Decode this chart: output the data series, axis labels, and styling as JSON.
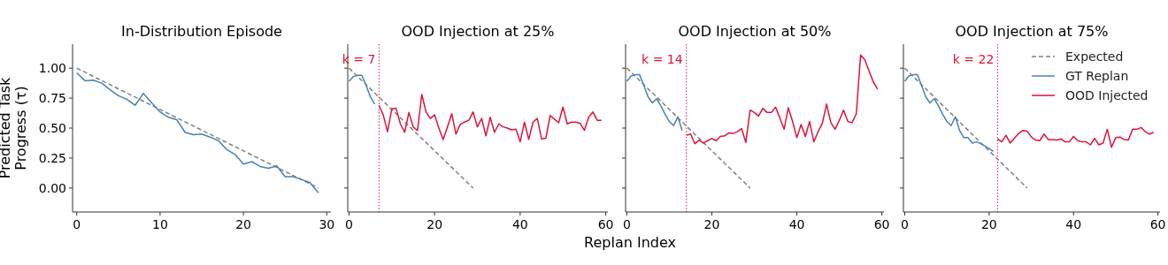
{
  "chart_data": [
    {
      "type": "line",
      "title": "In-Distribution Episode",
      "ylabel": "Predicted Task\nProgress (τ)",
      "xlim": [
        -0.5,
        30.5
      ],
      "xticks": [
        0,
        10,
        20,
        30
      ],
      "ylim": [
        -0.2,
        1.2
      ],
      "yticks": [
        {
          "value": 0,
          "label": "0.00"
        },
        {
          "value": 0.25,
          "label": "0.25"
        },
        {
          "value": 0.5,
          "label": "0.50"
        },
        {
          "value": 0.75,
          "label": "0.75"
        },
        {
          "value": 1,
          "label": "1.00"
        }
      ],
      "grid": false,
      "legend": false,
      "series": [
        {
          "color": "#808080",
          "line_style": "dashed",
          "x": [
            0,
            29
          ],
          "values": [
            1,
            0
          ]
        },
        {
          "color": "#4682b4",
          "line_style": "solid",
          "x": [
            0,
            1,
            2,
            3,
            4,
            5,
            6,
            7,
            8,
            9,
            10,
            11,
            12,
            13,
            14,
            15,
            16,
            17,
            18,
            19,
            20,
            21,
            22,
            23,
            24,
            25,
            26,
            27,
            28,
            29
          ],
          "values": [
            0.96,
            0.895,
            0.9,
            0.875,
            0.82,
            0.77,
            0.74,
            0.69,
            0.79,
            0.71,
            0.635,
            0.59,
            0.57,
            0.465,
            0.445,
            0.45,
            0.425,
            0.395,
            0.32,
            0.28,
            0.2,
            0.22,
            0.18,
            0.165,
            0.185,
            0.095,
            0.095,
            0.07,
            0.045,
            -0.04
          ]
        }
      ]
    },
    {
      "type": "line",
      "title": "OOD Injection at 25%",
      "xlim": [
        -0.3,
        60.5
      ],
      "xticks": [
        0,
        20,
        40,
        60
      ],
      "ylim": [
        -0.2,
        1.2
      ],
      "yticks": [
        {
          "value": 0,
          "label": null
        },
        {
          "value": 0.25,
          "label": null
        },
        {
          "value": 0.5,
          "label": null
        },
        {
          "value": 0.75,
          "label": null
        },
        {
          "value": 1,
          "label": null
        }
      ],
      "tick_labels": "x",
      "grid": false,
      "legend": false,
      "ref_lines": [
        {
          "axis": "x",
          "value": 7,
          "label": "k = 7",
          "color": "#dc143c",
          "line_style": "dotted"
        }
      ],
      "series": [
        {
          "color": "#808080",
          "line_style": "dashed",
          "x": [
            0,
            29
          ],
          "values": [
            1,
            0
          ]
        },
        {
          "color": "#4682b4",
          "line_style": "solid",
          "x": [
            0,
            1,
            2,
            3,
            4,
            5,
            6
          ],
          "values": [
            0.89,
            0.93,
            0.94,
            0.94,
            0.855,
            0.76,
            0.7
          ]
        },
        {
          "color": "#dc143c",
          "line_style": "solid",
          "x": [
            7,
            8,
            9,
            10,
            11,
            12,
            13,
            14,
            15,
            16,
            17,
            18,
            19,
            20,
            21,
            22,
            23,
            24,
            25,
            26,
            27,
            28,
            29,
            30,
            31,
            32,
            33,
            34,
            35,
            36,
            37,
            38,
            39,
            40,
            41,
            42,
            43,
            44,
            45,
            46,
            47,
            48,
            49,
            50,
            51,
            52,
            53,
            54,
            55,
            56,
            57,
            58,
            59
          ],
          "values": [
            0.69,
            0.61,
            0.47,
            0.66,
            0.665,
            0.535,
            0.465,
            0.63,
            0.51,
            0.48,
            0.78,
            0.635,
            0.58,
            0.61,
            0.5,
            0.405,
            0.51,
            0.62,
            0.45,
            0.53,
            0.55,
            0.565,
            0.635,
            0.51,
            0.58,
            0.435,
            0.59,
            0.465,
            0.535,
            0.51,
            0.5,
            0.485,
            0.49,
            0.385,
            0.55,
            0.405,
            0.55,
            0.58,
            0.41,
            0.415,
            0.605,
            0.575,
            0.545,
            0.675,
            0.535,
            0.55,
            0.55,
            0.54,
            0.48,
            0.59,
            0.635,
            0.565,
            0.565
          ]
        }
      ]
    },
    {
      "type": "line",
      "title": "OOD Injection at 50%",
      "xlabel": "Replan Index",
      "xlim": [
        -0.3,
        60.5
      ],
      "xticks": [
        0,
        20,
        40,
        60
      ],
      "ylim": [
        -0.2,
        1.2
      ],
      "yticks": [
        {
          "value": 0,
          "label": null
        },
        {
          "value": 0.25,
          "label": null
        },
        {
          "value": 0.5,
          "label": null
        },
        {
          "value": 0.75,
          "label": null
        },
        {
          "value": 1,
          "label": null
        }
      ],
      "tick_labels": "x",
      "grid": false,
      "legend": false,
      "ref_lines": [
        {
          "axis": "x",
          "value": 14,
          "label": "k = 14",
          "color": "#dc143c",
          "line_style": "dotted"
        }
      ],
      "series": [
        {
          "color": "#808080",
          "line_style": "dashed",
          "x": [
            0,
            29
          ],
          "values": [
            1,
            0
          ]
        },
        {
          "color": "#4682b4",
          "line_style": "solid",
          "x": [
            0,
            1,
            2,
            3,
            4,
            5,
            6,
            7,
            8,
            9,
            10,
            11,
            12,
            13
          ],
          "values": [
            0.89,
            0.935,
            0.945,
            0.945,
            0.855,
            0.76,
            0.71,
            0.745,
            0.685,
            0.615,
            0.555,
            0.52,
            0.595,
            0.48
          ]
        },
        {
          "color": "#dc143c",
          "line_style": "solid",
          "x": [
            14,
            15,
            16,
            17,
            18,
            19,
            20,
            21,
            22,
            23,
            24,
            25,
            26,
            27,
            28,
            29,
            30,
            31,
            32,
            33,
            34,
            35,
            36,
            37,
            38,
            39,
            40,
            41,
            42,
            43,
            44,
            45,
            46,
            47,
            48,
            49,
            50,
            51,
            52,
            53,
            54,
            55,
            56,
            57,
            58,
            59
          ],
          "values": [
            0.44,
            0.45,
            0.37,
            0.4,
            0.375,
            0.395,
            0.415,
            0.395,
            0.43,
            0.435,
            0.46,
            0.455,
            0.47,
            0.495,
            0.38,
            0.65,
            0.63,
            0.6,
            0.665,
            0.63,
            0.63,
            0.675,
            0.585,
            0.49,
            0.67,
            0.555,
            0.42,
            0.53,
            0.43,
            0.555,
            0.385,
            0.47,
            0.54,
            0.7,
            0.545,
            0.49,
            0.565,
            0.65,
            0.555,
            0.545,
            0.62,
            1.11,
            1.07,
            0.975,
            0.885,
            0.825
          ]
        }
      ]
    },
    {
      "type": "line",
      "title": "OOD Injection at 75%",
      "xlim": [
        -0.3,
        60.5
      ],
      "xticks": [
        0,
        20,
        40,
        60
      ],
      "ylim": [
        -0.2,
        1.2
      ],
      "yticks": [
        {
          "value": 0,
          "label": null
        },
        {
          "value": 0.25,
          "label": null
        },
        {
          "value": 0.5,
          "label": null
        },
        {
          "value": 0.75,
          "label": null
        },
        {
          "value": 1,
          "label": null
        }
      ],
      "tick_labels": "x",
      "grid": false,
      "legend": "top right",
      "ref_lines": [
        {
          "axis": "x",
          "value": 22,
          "label": "k = 22",
          "color": "#dc143c",
          "line_style": "dotted"
        }
      ],
      "series": [
        {
          "name": "Expected",
          "color": "#808080",
          "line_style": "dashed",
          "x": [
            0,
            29
          ],
          "values": [
            1,
            0
          ]
        },
        {
          "name": "GT Replan",
          "color": "#4682b4",
          "line_style": "solid",
          "x": [
            0,
            1,
            2,
            3,
            4,
            5,
            6,
            7,
            8,
            9,
            10,
            11,
            12,
            13,
            14,
            15,
            16,
            17,
            18,
            19,
            20,
            21
          ],
          "values": [
            0.89,
            0.935,
            0.945,
            0.945,
            0.855,
            0.76,
            0.71,
            0.745,
            0.685,
            0.615,
            0.555,
            0.52,
            0.595,
            0.48,
            0.42,
            0.42,
            0.375,
            0.385,
            0.37,
            0.35,
            0.33,
            0.305
          ]
        },
        {
          "name": "OOD Injected",
          "color": "#dc143c",
          "line_style": "solid",
          "x": [
            22,
            23,
            24,
            25,
            26,
            27,
            28,
            29,
            30,
            31,
            32,
            33,
            34,
            35,
            36,
            37,
            38,
            39,
            40,
            41,
            42,
            43,
            44,
            45,
            46,
            47,
            48,
            49,
            50,
            51,
            52,
            53,
            54,
            55,
            56,
            57,
            58,
            59
          ],
          "values": [
            0.41,
            0.385,
            0.44,
            0.375,
            0.415,
            0.455,
            0.48,
            0.475,
            0.425,
            0.4,
            0.395,
            0.45,
            0.405,
            0.405,
            0.4,
            0.41,
            0.385,
            0.385,
            0.43,
            0.395,
            0.385,
            0.385,
            0.36,
            0.415,
            0.36,
            0.375,
            0.49,
            0.34,
            0.42,
            0.425,
            0.405,
            0.4,
            0.49,
            0.49,
            0.505,
            0.47,
            0.45,
            0.465
          ]
        }
      ]
    }
  ]
}
